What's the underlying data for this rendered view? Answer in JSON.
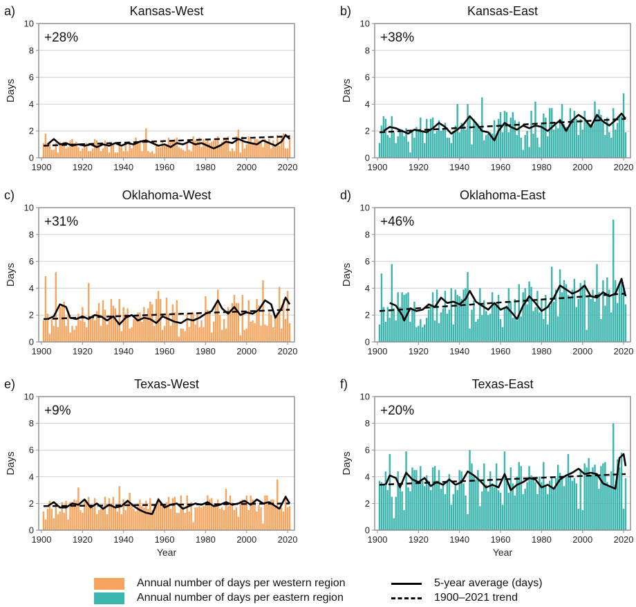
{
  "colors": {
    "west": "#f6a560",
    "east": "#3bb5ad",
    "avg": "#000000",
    "trend": "#000000",
    "grid": "#cfcfcf",
    "frame": "#8a8a8a"
  },
  "legend": {
    "west": "Annual number of days per western region",
    "east": "Annual number of days per eastern region",
    "avg": "5-year average (days)",
    "trend": "1900–2021 trend"
  },
  "chart_data": [
    {
      "type": "bar",
      "panel_letter": "a)",
      "title": "Kansas-West",
      "annotation": "+28%",
      "ylabel": "Days",
      "xlabel": "",
      "ylim": [
        0,
        10
      ],
      "yticks": [
        0,
        2,
        4,
        6,
        8,
        10
      ],
      "xticks": [
        1900,
        1920,
        1940,
        1960,
        1980,
        2000,
        2020
      ],
      "x_range": [
        1900,
        2021
      ],
      "grid": true,
      "region": "west",
      "trend": [
        0.9,
        1.6
      ],
      "avg": [
        [
          1903,
          1.0
        ],
        [
          1906,
          1.4
        ],
        [
          1909,
          1.0
        ],
        [
          1912,
          1.1
        ],
        [
          1915,
          0.9
        ],
        [
          1918,
          1.0
        ],
        [
          1921,
          0.9
        ],
        [
          1924,
          1.0
        ],
        [
          1927,
          0.8
        ],
        [
          1930,
          1.0
        ],
        [
          1933,
          0.9
        ],
        [
          1936,
          1.1
        ],
        [
          1939,
          0.9
        ],
        [
          1942,
          1.1
        ],
        [
          1945,
          1.0
        ],
        [
          1948,
          1.2
        ],
        [
          1951,
          1.3
        ],
        [
          1954,
          1.1
        ],
        [
          1957,
          0.9
        ],
        [
          1960,
          1.0
        ],
        [
          1963,
          0.8
        ],
        [
          1966,
          1.1
        ],
        [
          1969,
          1.0
        ],
        [
          1972,
          1.2
        ],
        [
          1975,
          1.0
        ],
        [
          1978,
          1.1
        ],
        [
          1981,
          0.9
        ],
        [
          1984,
          0.7
        ],
        [
          1987,
          0.9
        ],
        [
          1990,
          1.2
        ],
        [
          1993,
          1.1
        ],
        [
          1996,
          1.4
        ],
        [
          1999,
          1.2
        ],
        [
          2002,
          1.1
        ],
        [
          2005,
          1.0
        ],
        [
          2008,
          1.3
        ],
        [
          2011,
          1.1
        ],
        [
          2014,
          0.9
        ],
        [
          2017,
          1.2
        ],
        [
          2019,
          1.7
        ],
        [
          2021,
          1.4
        ]
      ],
      "peaks": [
        [
          1902,
          1.8
        ],
        [
          1915,
          1.4
        ],
        [
          1931,
          1.3
        ],
        [
          1951,
          2.2
        ],
        [
          1962,
          1.5
        ],
        [
          1986,
          1.6
        ],
        [
          1996,
          2.1
        ],
        [
          2015,
          1.7
        ],
        [
          2018,
          1.8
        ]
      ],
      "base": 1.0,
      "amp": 0.55,
      "trend_rel": 0.3
    },
    {
      "type": "bar",
      "panel_letter": "b)",
      "title": "Kansas-East",
      "annotation": "+38%",
      "ylabel": "Days",
      "xlabel": "",
      "ylim": [
        0,
        10
      ],
      "yticks": [
        0,
        2,
        4,
        6,
        8,
        10
      ],
      "xticks": [
        1900,
        1920,
        1940,
        1960,
        1980,
        2000,
        2020
      ],
      "x_range": [
        1900,
        2021
      ],
      "grid": true,
      "region": "east",
      "trend": [
        1.9,
        2.9
      ],
      "avg": [
        [
          1903,
          2.0
        ],
        [
          1906,
          2.3
        ],
        [
          1909,
          2.2
        ],
        [
          1912,
          2.0
        ],
        [
          1915,
          1.8
        ],
        [
          1918,
          2.1
        ],
        [
          1921,
          2.0
        ],
        [
          1924,
          1.9
        ],
        [
          1927,
          2.2
        ],
        [
          1930,
          2.6
        ],
        [
          1933,
          2.3
        ],
        [
          1936,
          1.8
        ],
        [
          1939,
          2.1
        ],
        [
          1942,
          2.5
        ],
        [
          1945,
          3.1
        ],
        [
          1948,
          2.6
        ],
        [
          1951,
          2.0
        ],
        [
          1954,
          1.9
        ],
        [
          1957,
          1.3
        ],
        [
          1959,
          2.0
        ],
        [
          1962,
          2.6
        ],
        [
          1965,
          2.3
        ],
        [
          1968,
          2.1
        ],
        [
          1971,
          2.4
        ],
        [
          1974,
          2.2
        ],
        [
          1977,
          2.4
        ],
        [
          1980,
          2.3
        ],
        [
          1983,
          2.0
        ],
        [
          1986,
          2.4
        ],
        [
          1989,
          2.8
        ],
        [
          1992,
          2.0
        ],
        [
          1995,
          2.8
        ],
        [
          1998,
          3.2
        ],
        [
          2001,
          2.9
        ],
        [
          2004,
          2.3
        ],
        [
          2007,
          3.2
        ],
        [
          2010,
          2.7
        ],
        [
          2013,
          2.4
        ],
        [
          2016,
          2.8
        ],
        [
          2019,
          3.3
        ],
        [
          2021,
          2.9
        ]
      ],
      "peaks": [
        [
          1903,
          3.1
        ],
        [
          1921,
          3.0
        ],
        [
          1939,
          4.0
        ],
        [
          1944,
          4.0
        ],
        [
          1951,
          4.5
        ],
        [
          1977,
          4.2
        ],
        [
          1990,
          4.0
        ],
        [
          2006,
          4.2
        ],
        [
          2020,
          4.8
        ]
      ],
      "base": 2.4,
      "amp": 1.1,
      "trend_rel": 0.38
    },
    {
      "type": "bar",
      "panel_letter": "c)",
      "title": "Oklahoma-West",
      "annotation": "+31%",
      "ylabel": "Days",
      "xlabel": "",
      "ylim": [
        0,
        10
      ],
      "yticks": [
        0,
        2,
        4,
        6,
        8,
        10
      ],
      "xticks": [
        1900,
        1920,
        1940,
        1960,
        1980,
        2000,
        2020
      ],
      "x_range": [
        1900,
        2021
      ],
      "grid": true,
      "region": "west",
      "trend": [
        1.7,
        2.4
      ],
      "avg": [
        [
          1903,
          1.7
        ],
        [
          1906,
          1.9
        ],
        [
          1909,
          2.8
        ],
        [
          1912,
          2.6
        ],
        [
          1914,
          1.8
        ],
        [
          1917,
          1.7
        ],
        [
          1920,
          1.9
        ],
        [
          1923,
          1.7
        ],
        [
          1926,
          2.0
        ],
        [
          1929,
          1.9
        ],
        [
          1932,
          1.6
        ],
        [
          1935,
          1.9
        ],
        [
          1938,
          1.3
        ],
        [
          1941,
          1.8
        ],
        [
          1944,
          2.0
        ],
        [
          1947,
          1.6
        ],
        [
          1950,
          1.8
        ],
        [
          1953,
          1.7
        ],
        [
          1956,
          1.4
        ],
        [
          1959,
          1.9
        ],
        [
          1962,
          1.7
        ],
        [
          1965,
          1.5
        ],
        [
          1968,
          1.4
        ],
        [
          1971,
          1.7
        ],
        [
          1974,
          1.6
        ],
        [
          1977,
          1.8
        ],
        [
          1980,
          2.1
        ],
        [
          1983,
          2.3
        ],
        [
          1986,
          3.1
        ],
        [
          1988,
          2.5
        ],
        [
          1991,
          2.1
        ],
        [
          1994,
          2.6
        ],
        [
          1997,
          2.0
        ],
        [
          2000,
          2.2
        ],
        [
          2003,
          2.1
        ],
        [
          2006,
          2.4
        ],
        [
          2009,
          3.1
        ],
        [
          2012,
          2.8
        ],
        [
          2014,
          1.8
        ],
        [
          2017,
          2.5
        ],
        [
          2019,
          3.3
        ],
        [
          2021,
          2.8
        ]
      ],
      "peaks": [
        [
          1902,
          4.9
        ],
        [
          1907,
          5.2
        ],
        [
          1923,
          4.4
        ],
        [
          1930,
          3.1
        ],
        [
          1957,
          3.8
        ],
        [
          1986,
          3.9
        ],
        [
          1998,
          3.5
        ],
        [
          2008,
          4.6
        ],
        [
          2016,
          4.1
        ],
        [
          2020,
          3.8
        ]
      ],
      "base": 2.0,
      "amp": 1.3,
      "trend_rel": 0.31
    },
    {
      "type": "bar",
      "panel_letter": "d)",
      "title": "Oklahoma-East",
      "annotation": "+46%",
      "ylabel": "Days",
      "xlabel": "",
      "ylim": [
        0,
        10
      ],
      "yticks": [
        0,
        2,
        4,
        6,
        8,
        10
      ],
      "xticks": [
        1900,
        1920,
        1940,
        1960,
        1980,
        2000,
        "2020"
      ],
      "x_range": [
        1900,
        2021
      ],
      "grid": true,
      "region": "east",
      "trend": [
        2.3,
        3.6
      ],
      "avg": [
        [
          1906,
          2.9
        ],
        [
          1909,
          2.7
        ],
        [
          1912,
          2.0
        ],
        [
          1913,
          1.6
        ],
        [
          1916,
          2.5
        ],
        [
          1919,
          2.3
        ],
        [
          1922,
          2.4
        ],
        [
          1925,
          2.8
        ],
        [
          1928,
          2.6
        ],
        [
          1931,
          3.3
        ],
        [
          1934,
          2.9
        ],
        [
          1937,
          3.0
        ],
        [
          1940,
          2.8
        ],
        [
          1943,
          3.2
        ],
        [
          1945,
          3.8
        ],
        [
          1948,
          3.0
        ],
        [
          1951,
          2.7
        ],
        [
          1954,
          2.4
        ],
        [
          1957,
          2.9
        ],
        [
          1960,
          2.4
        ],
        [
          1963,
          2.6
        ],
        [
          1966,
          2.1
        ],
        [
          1968,
          1.7
        ],
        [
          1971,
          2.7
        ],
        [
          1974,
          3.4
        ],
        [
          1977,
          2.9
        ],
        [
          1980,
          2.3
        ],
        [
          1983,
          2.6
        ],
        [
          1986,
          3.3
        ],
        [
          1989,
          4.2
        ],
        [
          1992,
          3.9
        ],
        [
          1995,
          3.6
        ],
        [
          1998,
          3.8
        ],
        [
          2001,
          4.2
        ],
        [
          2004,
          3.4
        ],
        [
          2007,
          3.3
        ],
        [
          2010,
          3.7
        ],
        [
          2013,
          3.4
        ],
        [
          2016,
          3.6
        ],
        [
          2019,
          4.7
        ],
        [
          2021,
          3.4
        ]
      ],
      "peaks": [
        [
          1902,
          5.1
        ],
        [
          1907,
          5.8
        ],
        [
          1944,
          5.2
        ],
        [
          1974,
          4.5
        ],
        [
          1985,
          5.6
        ],
        [
          1989,
          5.4
        ],
        [
          2007,
          5.8
        ],
        [
          2015,
          9.1
        ],
        [
          2019,
          4.7
        ]
      ],
      "base": 2.9,
      "amp": 1.4,
      "trend_rel": 0.46
    },
    {
      "type": "bar",
      "panel_letter": "e)",
      "title": "Texas-West",
      "annotation": "+9%",
      "ylabel": "Days",
      "xlabel": "Year",
      "ylim": [
        0,
        10
      ],
      "yticks": [
        0,
        2,
        4,
        6,
        8,
        10
      ],
      "xticks": [
        1900,
        1920,
        1940,
        1960,
        1980,
        2000,
        2020
      ],
      "x_range": [
        1900,
        2021
      ],
      "grid": true,
      "region": "west",
      "trend": [
        1.8,
        2.0
      ],
      "avg": [
        [
          1903,
          1.8
        ],
        [
          1906,
          2.1
        ],
        [
          1909,
          1.7
        ],
        [
          1912,
          1.7
        ],
        [
          1915,
          2.0
        ],
        [
          1918,
          1.9
        ],
        [
          1921,
          2.3
        ],
        [
          1924,
          1.7
        ],
        [
          1927,
          2.0
        ],
        [
          1930,
          1.6
        ],
        [
          1933,
          1.9
        ],
        [
          1936,
          1.7
        ],
        [
          1939,
          1.8
        ],
        [
          1942,
          2.2
        ],
        [
          1945,
          1.8
        ],
        [
          1948,
          1.5
        ],
        [
          1951,
          1.3
        ],
        [
          1954,
          1.2
        ],
        [
          1957,
          2.3
        ],
        [
          1960,
          1.7
        ],
        [
          1963,
          1.9
        ],
        [
          1966,
          2.0
        ],
        [
          1969,
          1.6
        ],
        [
          1972,
          1.8
        ],
        [
          1975,
          2.0
        ],
        [
          1978,
          1.9
        ],
        [
          1981,
          2.1
        ],
        [
          1984,
          1.8
        ],
        [
          1987,
          1.9
        ],
        [
          1990,
          2.1
        ],
        [
          1993,
          1.9
        ],
        [
          1996,
          2.0
        ],
        [
          1999,
          2.2
        ],
        [
          2002,
          1.9
        ],
        [
          2005,
          2.3
        ],
        [
          2008,
          2.0
        ],
        [
          2011,
          2.1
        ],
        [
          2014,
          1.8
        ],
        [
          2016,
          1.6
        ],
        [
          2019,
          2.5
        ],
        [
          2021,
          2.0
        ]
      ],
      "peaks": [
        [
          1918,
          3.2
        ],
        [
          1938,
          3.3
        ],
        [
          1943,
          2.8
        ],
        [
          1990,
          3.1
        ],
        [
          2015,
          3.8
        ],
        [
          2019,
          2.6
        ]
      ],
      "base": 1.9,
      "amp": 0.7,
      "trend_rel": 0.09
    },
    {
      "type": "bar",
      "panel_letter": "f)",
      "title": "Texas-East",
      "annotation": "+20%",
      "ylabel": "Days",
      "xlabel": "Year",
      "ylim": [
        0,
        10
      ],
      "yticks": [
        0,
        2,
        4,
        6,
        8,
        10
      ],
      "xticks": [
        1900,
        1920,
        1940,
        1960,
        1980,
        2000,
        2020
      ],
      "x_range": [
        1900,
        2021
      ],
      "grid": true,
      "region": "east",
      "trend": [
        3.4,
        4.2
      ],
      "avg": [
        [
          1904,
          3.4
        ],
        [
          1906,
          4.1
        ],
        [
          1909,
          3.9
        ],
        [
          1911,
          3.2
        ],
        [
          1914,
          4.3
        ],
        [
          1917,
          3.8
        ],
        [
          1920,
          3.6
        ],
        [
          1923,
          3.9
        ],
        [
          1926,
          3.3
        ],
        [
          1929,
          3.6
        ],
        [
          1932,
          3.4
        ],
        [
          1935,
          3.8
        ],
        [
          1938,
          3.4
        ],
        [
          1941,
          3.6
        ],
        [
          1944,
          4.4
        ],
        [
          1947,
          4.1
        ],
        [
          1950,
          3.7
        ],
        [
          1953,
          3.2
        ],
        [
          1956,
          3.4
        ],
        [
          1959,
          3.2
        ],
        [
          1962,
          4.2
        ],
        [
          1965,
          3.0
        ],
        [
          1968,
          3.4
        ],
        [
          1971,
          3.6
        ],
        [
          1974,
          3.9
        ],
        [
          1977,
          3.8
        ],
        [
          1980,
          3.2
        ],
        [
          1983,
          3.4
        ],
        [
          1986,
          3.1
        ],
        [
          1989,
          3.8
        ],
        [
          1992,
          4.1
        ],
        [
          1995,
          4.3
        ],
        [
          1998,
          4.6
        ],
        [
          2001,
          4.2
        ],
        [
          2004,
          4.3
        ],
        [
          2007,
          4.2
        ],
        [
          2010,
          3.5
        ],
        [
          2013,
          3.3
        ],
        [
          2016,
          3.1
        ],
        [
          2018,
          5.4
        ],
        [
          2020,
          5.7
        ],
        [
          2021,
          4.8
        ]
      ],
      "peaks": [
        [
          1906,
          5.7
        ],
        [
          1914,
          5.9
        ],
        [
          1945,
          6.0
        ],
        [
          1962,
          5.9
        ],
        [
          1993,
          5.7
        ],
        [
          2003,
          5.4
        ],
        [
          2015,
          8.0
        ],
        [
          2019,
          5.8
        ]
      ],
      "base": 3.8,
      "amp": 1.3,
      "trend_rel": 0.2
    }
  ]
}
